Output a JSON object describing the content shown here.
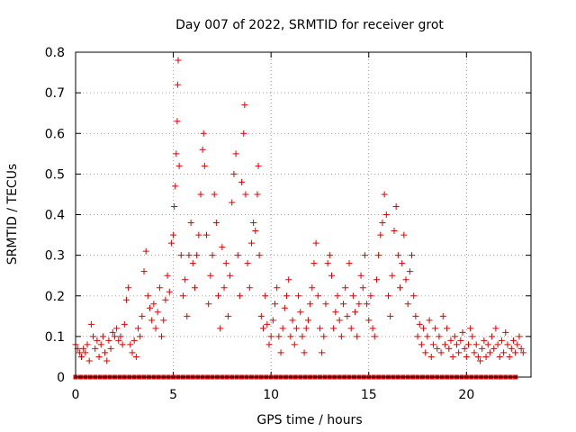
{
  "chart_data": {
    "type": "scatter",
    "title": "Day 007 of 2022, SRMTID for receiver grot",
    "xlabel": "GPS time / hours",
    "ylabel": "SRMTID / TECUs",
    "xlim": [
      0,
      23.3
    ],
    "ylim": [
      0,
      0.8
    ],
    "grid": true,
    "marker": "+",
    "color": "#e00000",
    "xticks": [
      0,
      5,
      10,
      15,
      20
    ],
    "yticks": [
      0,
      0.1,
      0.2,
      0.3,
      0.4,
      0.5,
      0.6,
      0.7,
      0.8
    ],
    "xtick_labels": [
      "0",
      "5",
      "10",
      "15",
      "20"
    ],
    "ytick_labels": [
      "0",
      "0.1",
      "0.2",
      "0.3",
      "0.4",
      "0.5",
      "0.6",
      "0.7",
      "0.8"
    ],
    "series": [
      {
        "name": "SRMTID",
        "points": [
          [
            0.0,
            0.08
          ],
          [
            0.1,
            0.07
          ],
          [
            0.2,
            0.06
          ],
          [
            0.3,
            0.05
          ],
          [
            0.4,
            0.07
          ],
          [
            0.5,
            0.06
          ],
          [
            0.6,
            0.08
          ],
          [
            0.7,
            0.04
          ],
          [
            0.8,
            0.13
          ],
          [
            0.9,
            0.1
          ],
          [
            1.0,
            0.07
          ],
          [
            1.1,
            0.09
          ],
          [
            1.2,
            0.05
          ],
          [
            1.3,
            0.08
          ],
          [
            1.4,
            0.1
          ],
          [
            1.5,
            0.06
          ],
          [
            1.6,
            0.04
          ],
          [
            1.7,
            0.09
          ],
          [
            1.8,
            0.07
          ],
          [
            1.9,
            0.11
          ],
          [
            2.0,
            0.1
          ],
          [
            2.1,
            0.12
          ],
          [
            2.2,
            0.09
          ],
          [
            2.3,
            0.1
          ],
          [
            2.4,
            0.08
          ],
          [
            2.5,
            0.13
          ],
          [
            2.6,
            0.19
          ],
          [
            2.7,
            0.22
          ],
          [
            2.8,
            0.08
          ],
          [
            2.9,
            0.06
          ],
          [
            3.0,
            0.09
          ],
          [
            3.1,
            0.05
          ],
          [
            3.2,
            0.12
          ],
          [
            3.3,
            0.1
          ],
          [
            3.4,
            0.15
          ],
          [
            3.5,
            0.26
          ],
          [
            3.6,
            0.31
          ],
          [
            3.7,
            0.2
          ],
          [
            3.8,
            0.17
          ],
          [
            3.9,
            0.14
          ],
          [
            4.0,
            0.18
          ],
          [
            4.1,
            0.12
          ],
          [
            4.2,
            0.16
          ],
          [
            4.3,
            0.22
          ],
          [
            4.4,
            0.1
          ],
          [
            4.5,
            0.14
          ],
          [
            4.6,
            0.19
          ],
          [
            4.7,
            0.25
          ],
          [
            4.8,
            0.21
          ],
          [
            4.9,
            0.33
          ],
          [
            5.0,
            0.35
          ],
          [
            5.05,
            0.42
          ],
          [
            5.1,
            0.47
          ],
          [
            5.15,
            0.55
          ],
          [
            5.2,
            0.63
          ],
          [
            5.22,
            0.72
          ],
          [
            5.25,
            0.78
          ],
          [
            5.3,
            0.52
          ],
          [
            5.4,
            0.3
          ],
          [
            5.5,
            0.2
          ],
          [
            5.6,
            0.24
          ],
          [
            5.7,
            0.15
          ],
          [
            5.8,
            0.3
          ],
          [
            5.9,
            0.38
          ],
          [
            6.0,
            0.28
          ],
          [
            6.1,
            0.22
          ],
          [
            6.2,
            0.3
          ],
          [
            6.3,
            0.35
          ],
          [
            6.4,
            0.45
          ],
          [
            6.5,
            0.56
          ],
          [
            6.55,
            0.6
          ],
          [
            6.6,
            0.52
          ],
          [
            6.7,
            0.35
          ],
          [
            6.8,
            0.18
          ],
          [
            6.9,
            0.25
          ],
          [
            7.0,
            0.3
          ],
          [
            7.1,
            0.45
          ],
          [
            7.2,
            0.38
          ],
          [
            7.3,
            0.2
          ],
          [
            7.4,
            0.12
          ],
          [
            7.5,
            0.32
          ],
          [
            7.6,
            0.22
          ],
          [
            7.7,
            0.28
          ],
          [
            7.8,
            0.15
          ],
          [
            7.9,
            0.25
          ],
          [
            8.0,
            0.43
          ],
          [
            8.1,
            0.5
          ],
          [
            8.2,
            0.55
          ],
          [
            8.3,
            0.3
          ],
          [
            8.4,
            0.2
          ],
          [
            8.5,
            0.48
          ],
          [
            8.6,
            0.6
          ],
          [
            8.65,
            0.67
          ],
          [
            8.7,
            0.45
          ],
          [
            8.8,
            0.28
          ],
          [
            8.9,
            0.22
          ],
          [
            9.0,
            0.33
          ],
          [
            9.1,
            0.38
          ],
          [
            9.2,
            0.36
          ],
          [
            9.3,
            0.45
          ],
          [
            9.35,
            0.52
          ],
          [
            9.4,
            0.3
          ],
          [
            9.5,
            0.15
          ],
          [
            9.6,
            0.12
          ],
          [
            9.7,
            0.2
          ],
          [
            9.8,
            0.13
          ],
          [
            9.9,
            0.08
          ],
          [
            10.0,
            0.1
          ],
          [
            10.1,
            0.14
          ],
          [
            10.2,
            0.18
          ],
          [
            10.3,
            0.22
          ],
          [
            10.4,
            0.1
          ],
          [
            10.5,
            0.06
          ],
          [
            10.6,
            0.12
          ],
          [
            10.7,
            0.17
          ],
          [
            10.8,
            0.2
          ],
          [
            10.9,
            0.24
          ],
          [
            11.0,
            0.1
          ],
          [
            11.1,
            0.14
          ],
          [
            11.2,
            0.08
          ],
          [
            11.3,
            0.12
          ],
          [
            11.4,
            0.2
          ],
          [
            11.5,
            0.16
          ],
          [
            11.6,
            0.1
          ],
          [
            11.7,
            0.06
          ],
          [
            11.8,
            0.12
          ],
          [
            11.9,
            0.14
          ],
          [
            12.0,
            0.18
          ],
          [
            12.1,
            0.22
          ],
          [
            12.2,
            0.28
          ],
          [
            12.3,
            0.33
          ],
          [
            12.4,
            0.2
          ],
          [
            12.5,
            0.12
          ],
          [
            12.6,
            0.06
          ],
          [
            12.7,
            0.1
          ],
          [
            12.8,
            0.18
          ],
          [
            12.9,
            0.28
          ],
          [
            13.0,
            0.3
          ],
          [
            13.1,
            0.25
          ],
          [
            13.2,
            0.12
          ],
          [
            13.3,
            0.16
          ],
          [
            13.4,
            0.2
          ],
          [
            13.5,
            0.14
          ],
          [
            13.6,
            0.1
          ],
          [
            13.7,
            0.18
          ],
          [
            13.8,
            0.22
          ],
          [
            13.9,
            0.15
          ],
          [
            14.0,
            0.28
          ],
          [
            14.1,
            0.12
          ],
          [
            14.2,
            0.2
          ],
          [
            14.3,
            0.16
          ],
          [
            14.4,
            0.1
          ],
          [
            14.5,
            0.18
          ],
          [
            14.6,
            0.25
          ],
          [
            14.7,
            0.22
          ],
          [
            14.8,
            0.3
          ],
          [
            14.9,
            0.18
          ],
          [
            15.0,
            0.14
          ],
          [
            15.1,
            0.2
          ],
          [
            15.2,
            0.12
          ],
          [
            15.3,
            0.1
          ],
          [
            15.4,
            0.24
          ],
          [
            15.5,
            0.3
          ],
          [
            15.6,
            0.35
          ],
          [
            15.7,
            0.38
          ],
          [
            15.8,
            0.45
          ],
          [
            15.9,
            0.4
          ],
          [
            16.0,
            0.2
          ],
          [
            16.1,
            0.15
          ],
          [
            16.2,
            0.25
          ],
          [
            16.3,
            0.36
          ],
          [
            16.4,
            0.42
          ],
          [
            16.5,
            0.3
          ],
          [
            16.6,
            0.22
          ],
          [
            16.7,
            0.28
          ],
          [
            16.8,
            0.35
          ],
          [
            16.9,
            0.24
          ],
          [
            17.0,
            0.18
          ],
          [
            17.1,
            0.26
          ],
          [
            17.2,
            0.3
          ],
          [
            17.3,
            0.2
          ],
          [
            17.4,
            0.15
          ],
          [
            17.5,
            0.1
          ],
          [
            17.6,
            0.13
          ],
          [
            17.7,
            0.08
          ],
          [
            17.8,
            0.12
          ],
          [
            17.9,
            0.06
          ],
          [
            18.0,
            0.1
          ],
          [
            18.1,
            0.14
          ],
          [
            18.2,
            0.05
          ],
          [
            18.3,
            0.08
          ],
          [
            18.4,
            0.12
          ],
          [
            18.5,
            0.07
          ],
          [
            18.6,
            0.1
          ],
          [
            18.7,
            0.06
          ],
          [
            18.8,
            0.15
          ],
          [
            18.9,
            0.08
          ],
          [
            19.0,
            0.12
          ],
          [
            19.1,
            0.07
          ],
          [
            19.2,
            0.09
          ],
          [
            19.3,
            0.05
          ],
          [
            19.4,
            0.1
          ],
          [
            19.5,
            0.08
          ],
          [
            19.6,
            0.06
          ],
          [
            19.7,
            0.09
          ],
          [
            19.8,
            0.11
          ],
          [
            19.9,
            0.07
          ],
          [
            20.0,
            0.05
          ],
          [
            20.1,
            0.08
          ],
          [
            20.2,
            0.12
          ],
          [
            20.3,
            0.1
          ],
          [
            20.4,
            0.06
          ],
          [
            20.5,
            0.08
          ],
          [
            20.6,
            0.05
          ],
          [
            20.7,
            0.04
          ],
          [
            20.8,
            0.07
          ],
          [
            20.9,
            0.09
          ],
          [
            21.0,
            0.05
          ],
          [
            21.1,
            0.08
          ],
          [
            21.2,
            0.06
          ],
          [
            21.3,
            0.1
          ],
          [
            21.4,
            0.07
          ],
          [
            21.5,
            0.12
          ],
          [
            21.6,
            0.08
          ],
          [
            21.7,
            0.05
          ],
          [
            21.8,
            0.09
          ],
          [
            21.9,
            0.06
          ],
          [
            22.0,
            0.11
          ],
          [
            22.1,
            0.08
          ],
          [
            22.2,
            0.05
          ],
          [
            22.3,
            0.07
          ],
          [
            22.4,
            0.09
          ],
          [
            22.5,
            0.06
          ],
          [
            22.6,
            0.08
          ],
          [
            22.7,
            0.1
          ],
          [
            22.8,
            0.07
          ],
          [
            22.9,
            0.06
          ]
        ]
      },
      {
        "name": "baseline-zero",
        "x_start": 0.0,
        "x_step": 0.25,
        "count": 91,
        "y": 0
      }
    ]
  }
}
